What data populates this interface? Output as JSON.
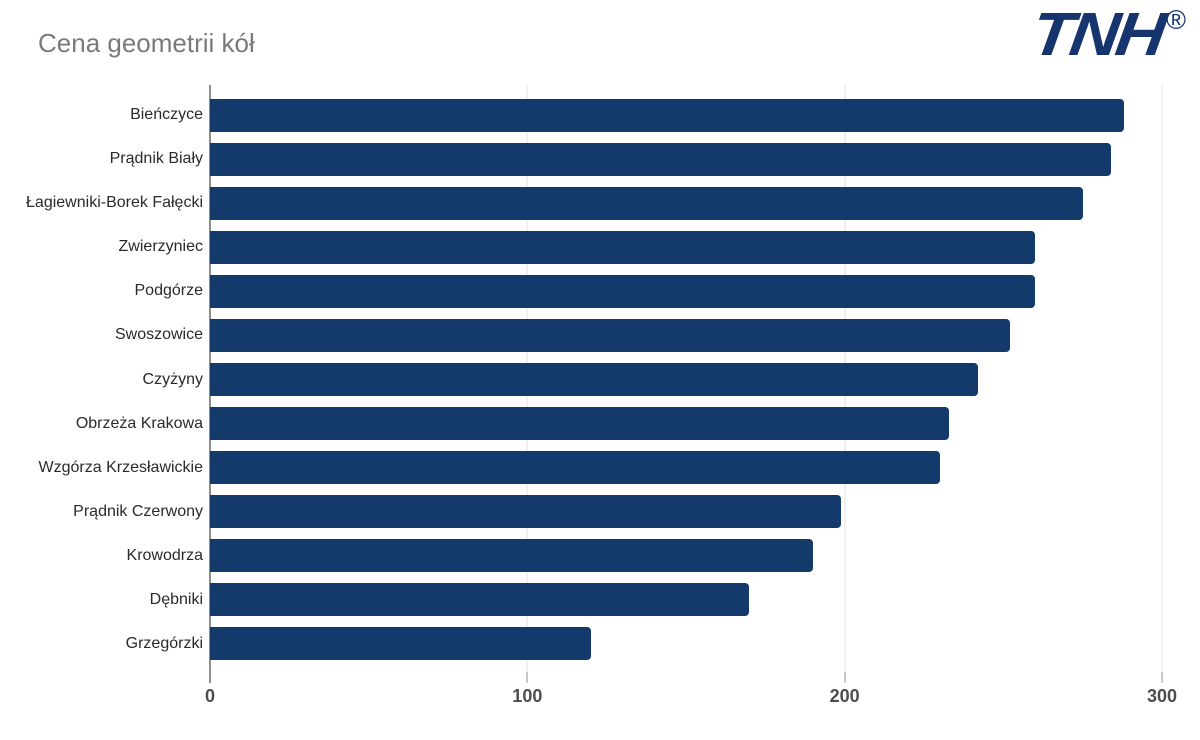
{
  "title": "Cena geometrii kół",
  "logo": {
    "text": "TNH",
    "registered": "®",
    "color": "#16356F"
  },
  "chart_data": {
    "type": "bar",
    "orientation": "horizontal",
    "title": "Cena geometrii kół",
    "xlabel": "",
    "ylabel": "",
    "categories": [
      "Bieńczyce",
      "Prądnik Biały",
      "Łagiewniki-Borek Fałęcki",
      "Zwierzyniec",
      "Podgórze",
      "Swoszowice",
      "Czyżyny",
      "Obrzeża Krakowa",
      "Wzgórza Krzesławickie",
      "Prądnik Czerwony",
      "Krowodrza",
      "Dębniki",
      "Grzegórzki"
    ],
    "values": [
      288,
      284,
      275,
      260,
      260,
      252,
      242,
      233,
      230,
      199,
      190,
      170,
      120
    ],
    "xlim": [
      0,
      300
    ],
    "x_ticks": [
      0,
      100,
      200,
      300
    ],
    "x_tick_labels": [
      "0",
      "100",
      "200",
      "300"
    ],
    "grid": "vertical",
    "legend": "none",
    "style": {
      "bar_color": "#143A6C",
      "gridline_color": "#E0E0E0",
      "axis_zero_line_color": "#8F8F8F",
      "tick_mark_color": "#C8C8C8",
      "tick_label_color": "#4D4D4D",
      "category_label_color": "#2A2A2A",
      "title_color": "#7A7A7A"
    }
  }
}
